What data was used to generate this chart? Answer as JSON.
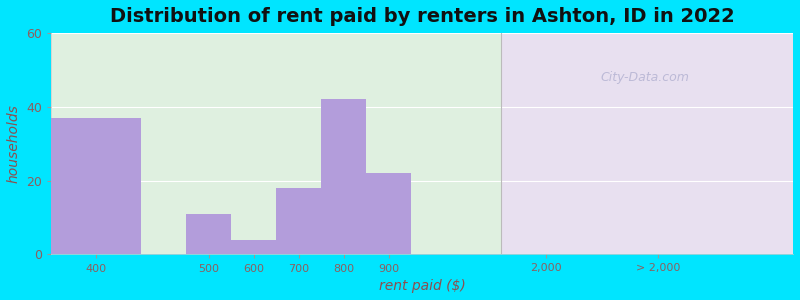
{
  "title": "Distribution of rent paid by renters in Ashton, ID in 2022",
  "xlabel": "rent paid ($)",
  "ylabel": "households",
  "bar_color": "#b39ddb",
  "bar_edge_color": "#9575cd",
  "background_outer": "#00e5ff",
  "background_left": "#dff0e0",
  "background_right": "#e8e0f0",
  "ylim": [
    0,
    60
  ],
  "yticks": [
    0,
    20,
    40,
    60
  ],
  "title_fontsize": 14,
  "axis_label_fontsize": 10,
  "watermark": "City-Data.com",
  "bar_centers": [
    1.0,
    3.5,
    4.5,
    5.5,
    6.5,
    7.5,
    13.5
  ],
  "bar_widths": [
    2.0,
    1.0,
    1.0,
    1.0,
    1.0,
    1.0,
    5.0
  ],
  "bar_values": [
    37,
    11,
    4,
    18,
    42,
    22,
    0
  ],
  "xtick_positions": [
    1.0,
    3.5,
    4.5,
    5.5,
    6.5,
    7.5,
    11.0,
    13.5
  ],
  "xtick_labels": [
    "400",
    "500",
    "600",
    "700",
    "800",
    "900",
    "2,000",
    "> 2,000"
  ],
  "xlim": [
    0,
    16.5
  ],
  "divider_x": 10.0,
  "split_start": 10.0,
  "split_end": 16.5
}
